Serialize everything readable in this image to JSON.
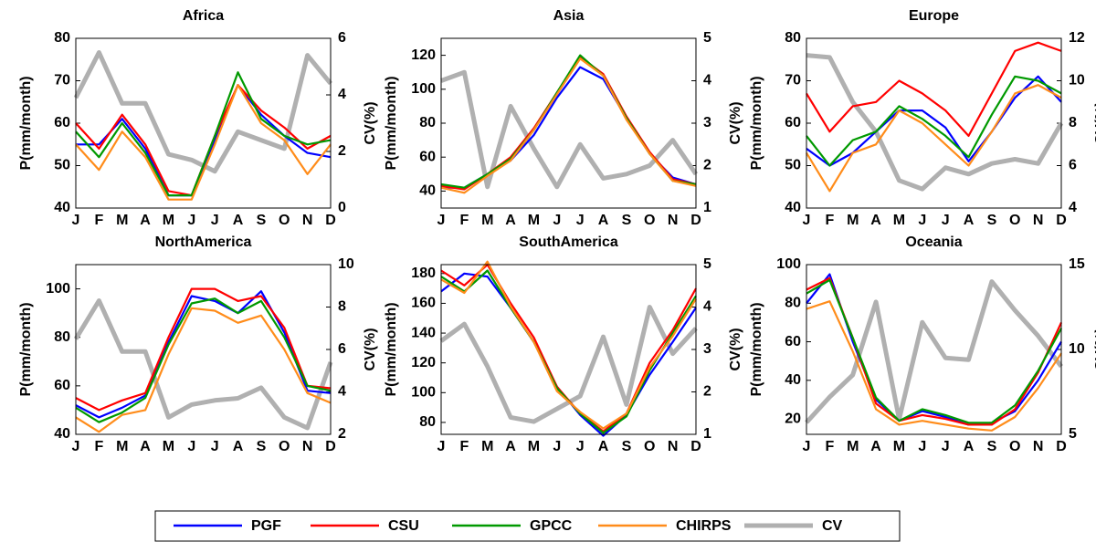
{
  "legend": [
    {
      "name": "PGF",
      "color": "#0000ff"
    },
    {
      "name": "CSU",
      "color": "#ff0000"
    },
    {
      "name": "GPCC",
      "color": "#009900"
    },
    {
      "name": "CHIRPS",
      "color": "#ff8c1a"
    },
    {
      "name": "CV",
      "color": "#b0b0b0"
    }
  ],
  "chart_data": [
    {
      "type": "line",
      "title": "Africa",
      "y_label": "P(mm/month)",
      "y2_label": "CV(%)",
      "categories": [
        "J",
        "F",
        "M",
        "A",
        "M",
        "J",
        "J",
        "A",
        "S",
        "O",
        "N",
        "D"
      ],
      "ylim": [
        40,
        80
      ],
      "yticks": [
        40,
        50,
        60,
        70,
        80
      ],
      "y2lim": [
        0,
        6
      ],
      "y2ticks": [
        0,
        2,
        4,
        6
      ],
      "series": [
        {
          "values": [
            55,
            55,
            61,
            54,
            43,
            43,
            56,
            69,
            62,
            57,
            53,
            52
          ]
        },
        {
          "values": [
            60,
            54,
            62,
            55,
            44,
            43,
            57,
            69,
            63,
            59,
            54,
            57
          ]
        },
        {
          "values": [
            58,
            52,
            60,
            53,
            43,
            43,
            57,
            72,
            61,
            57,
            55,
            56
          ]
        },
        {
          "values": [
            55,
            49,
            58,
            52,
            42,
            42,
            55,
            69,
            60,
            56,
            48,
            55
          ]
        },
        {
          "axis": "y2",
          "values": [
            3.9,
            5.5,
            3.7,
            3.7,
            1.9,
            1.7,
            1.3,
            2.7,
            2.4,
            2.1,
            5.4,
            4.4
          ]
        }
      ]
    },
    {
      "type": "line",
      "title": "Asia",
      "y_label": "P(mm/month)",
      "y2_label": "CV(%)",
      "categories": [
        "J",
        "F",
        "M",
        "A",
        "M",
        "J",
        "J",
        "A",
        "S",
        "O",
        "N",
        "D"
      ],
      "ylim": [
        30,
        130
      ],
      "yticks": [
        40,
        60,
        80,
        100,
        120
      ],
      "y2lim": [
        1,
        5
      ],
      "y2ticks": [
        1,
        2,
        3,
        4,
        5
      ],
      "series": [
        {
          "values": [
            42,
            42,
            50,
            58,
            73,
            95,
            113,
            106,
            83,
            62,
            48,
            44
          ]
        },
        {
          "values": [
            43,
            41,
            50,
            60,
            77,
            98,
            119,
            109,
            84,
            63,
            47,
            44
          ]
        },
        {
          "values": [
            44,
            42,
            50,
            59,
            76,
            98,
            120,
            108,
            83,
            62,
            46,
            44
          ]
        },
        {
          "values": [
            42,
            39,
            49,
            58,
            76,
            97,
            118,
            108,
            82,
            62,
            46,
            43
          ]
        },
        {
          "axis": "y2",
          "values": [
            4.0,
            4.2,
            1.5,
            3.4,
            2.4,
            1.5,
            2.5,
            1.7,
            1.8,
            2.0,
            2.6,
            1.8
          ]
        }
      ]
    },
    {
      "type": "line",
      "title": "Europe",
      "y_label": "P(mm/month)",
      "y2_label": "CV(%)",
      "categories": [
        "J",
        "F",
        "M",
        "A",
        "M",
        "J",
        "J",
        "A",
        "S",
        "O",
        "N",
        "D"
      ],
      "ylim": [
        40,
        80
      ],
      "yticks": [
        40,
        50,
        60,
        70,
        80
      ],
      "y2lim": [
        4,
        12
      ],
      "y2ticks": [
        4,
        6,
        8,
        10,
        12
      ],
      "series": [
        {
          "values": [
            54,
            50,
            53,
            58,
            63,
            63,
            59,
            51,
            58,
            66,
            71,
            65
          ]
        },
        {
          "values": [
            67,
            58,
            64,
            65,
            70,
            67,
            63,
            57,
            67,
            77,
            79,
            77
          ]
        },
        {
          "values": [
            57,
            50,
            56,
            58,
            64,
            61,
            57,
            52,
            62,
            71,
            70,
            67
          ]
        },
        {
          "values": [
            53,
            44,
            53,
            55,
            63,
            60,
            55,
            50,
            58,
            67,
            69,
            66
          ]
        },
        {
          "axis": "y2",
          "values": [
            11.2,
            11.1,
            9.0,
            7.6,
            5.3,
            4.9,
            5.9,
            5.6,
            6.1,
            6.3,
            6.1,
            8.0
          ]
        }
      ]
    },
    {
      "type": "line",
      "title": "NorthAmerica",
      "y_label": "P(mm/month)",
      "y2_label": "CV(%)",
      "categories": [
        "J",
        "F",
        "M",
        "A",
        "M",
        "J",
        "J",
        "A",
        "S",
        "O",
        "N",
        "D"
      ],
      "ylim": [
        40,
        110
      ],
      "yticks": [
        40,
        60,
        80,
        100
      ],
      "y2lim": [
        2,
        10
      ],
      "y2ticks": [
        2,
        4,
        6,
        8,
        10
      ],
      "series": [
        {
          "values": [
            52,
            47,
            51,
            56,
            78,
            97,
            95,
            90,
            99,
            82,
            58,
            57
          ]
        },
        {
          "values": [
            55,
            50,
            54,
            57,
            80,
            100,
            100,
            95,
            97,
            84,
            60,
            59
          ]
        },
        {
          "values": [
            51,
            45,
            49,
            55,
            77,
            94,
            96,
            90,
            95,
            80,
            60,
            58
          ]
        },
        {
          "values": [
            47,
            41,
            48,
            50,
            73,
            92,
            91,
            86,
            89,
            75,
            57,
            53
          ]
        },
        {
          "axis": "y2",
          "values": [
            6.5,
            8.3,
            5.9,
            5.9,
            2.8,
            3.4,
            3.6,
            3.7,
            4.2,
            2.8,
            2.3,
            5.4
          ]
        }
      ]
    },
    {
      "type": "line",
      "title": "SouthAmerica",
      "y_label": "P(mm/month)",
      "y2_label": "CV(%)",
      "categories": [
        "J",
        "F",
        "M",
        "A",
        "M",
        "J",
        "J",
        "A",
        "S",
        "O",
        "N",
        "D"
      ],
      "ylim": [
        72,
        186
      ],
      "yticks": [
        80,
        100,
        120,
        140,
        160,
        180
      ],
      "y2lim": [
        1,
        5
      ],
      "y2ticks": [
        1,
        2,
        3,
        4,
        5
      ],
      "series": [
        {
          "values": [
            168,
            180,
            178,
            157,
            134,
            104,
            85,
            71,
            85,
            112,
            134,
            157
          ]
        },
        {
          "values": [
            182,
            172,
            186,
            160,
            137,
            104,
            86,
            74,
            86,
            120,
            142,
            170
          ]
        },
        {
          "values": [
            178,
            168,
            182,
            157,
            134,
            103,
            86,
            73,
            84,
            115,
            140,
            165
          ]
        },
        {
          "values": [
            176,
            167,
            188,
            158,
            134,
            101,
            87,
            76,
            86,
            117,
            138,
            163
          ]
        },
        {
          "axis": "y2",
          "values": [
            3.2,
            3.6,
            2.6,
            1.4,
            1.3,
            1.6,
            1.9,
            3.3,
            1.7,
            4.0,
            2.9,
            3.5
          ]
        }
      ]
    },
    {
      "type": "line",
      "title": "Oceania",
      "y_label": "P(mm/month)",
      "y2_label": "CV(%)",
      "categories": [
        "J",
        "F",
        "M",
        "A",
        "M",
        "J",
        "J",
        "A",
        "S",
        "O",
        "N",
        "D"
      ],
      "ylim": [
        12,
        100
      ],
      "yticks": [
        20,
        40,
        60,
        80,
        100
      ],
      "y2lim": [
        5,
        15
      ],
      "y2ticks": [
        5,
        10,
        15
      ],
      "series": [
        {
          "values": [
            80,
            95,
            60,
            30,
            19,
            24,
            21,
            17,
            18,
            24,
            40,
            60
          ]
        },
        {
          "values": [
            87,
            93,
            62,
            28,
            19,
            22,
            20,
            17,
            17,
            25,
            44,
            70
          ]
        },
        {
          "values": [
            85,
            92,
            62,
            31,
            19,
            25,
            22,
            18,
            18,
            27,
            45,
            67
          ]
        },
        {
          "values": [
            77,
            81,
            55,
            25,
            17,
            19,
            17,
            15,
            14,
            21,
            36,
            54
          ]
        },
        {
          "axis": "y2",
          "values": [
            5.7,
            7.2,
            8.5,
            12.8,
            5.9,
            11.6,
            9.5,
            9.4,
            14.0,
            12.3,
            10.8,
            9.0
          ]
        }
      ]
    }
  ]
}
